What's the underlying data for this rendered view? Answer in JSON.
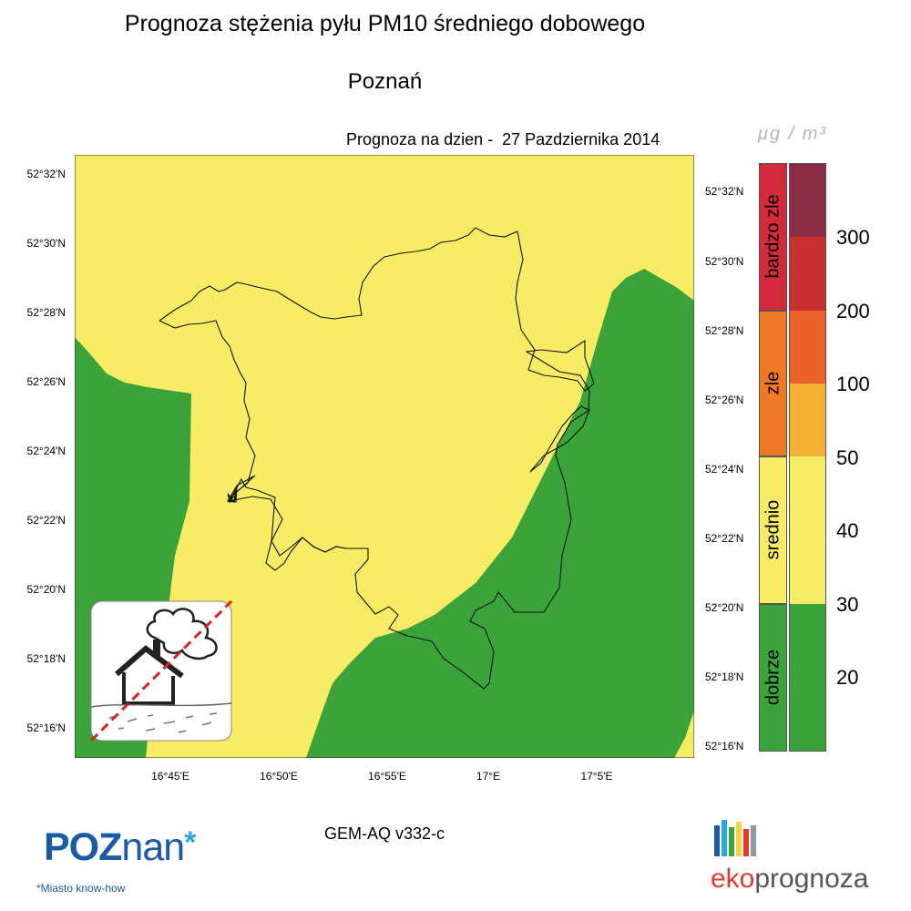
{
  "header": {
    "title": "Prognoza stężenia pyłu PM10 średniego dobowego",
    "city": "Poznań",
    "forecast_label": "Prognoza na dzien -  27 Pazdziernika 2014"
  },
  "map": {
    "lat_labels": [
      "52°32'N",
      "52°30'N",
      "52°28'N",
      "52°26'N",
      "52°24'N",
      "52°22'N",
      "52°20'N",
      "52°18'N",
      "52°16'N"
    ],
    "lon_labels": [
      "16°45'E",
      "16°50'E",
      "16°55'E",
      "17°E",
      "17°5'E"
    ],
    "colors": {
      "green": "#3aa33a",
      "yellow": "#f7ec64",
      "boundary": "#111111"
    }
  },
  "legend": {
    "unit": "μg / m³",
    "categories": [
      {
        "label": "bardzo zle",
        "color": "#d32a3c"
      },
      {
        "label": "zle",
        "color": "#ef7a23"
      },
      {
        "label": "srednio",
        "color": "#f7ec64"
      },
      {
        "label": "dobrze",
        "color": "#3aa33a"
      }
    ],
    "swatches": [
      "#8a2d45",
      "#c83030",
      "#ea6228",
      "#f7b132",
      "#f7ec64",
      "#f7ec64",
      "#f7ec64",
      "#3aa33a"
    ],
    "ticks": [
      "300",
      "200",
      "100",
      "50",
      "40",
      "30",
      "20"
    ]
  },
  "footer": {
    "model": "GEM-AQ v332-c",
    "poznan_logo_a": "POZ",
    "poznan_logo_b": "nan",
    "poznan_logo_star": "*",
    "poznan_tagline": "*Miasto know-how",
    "eko_a": "eko",
    "eko_b": "prognoza"
  }
}
